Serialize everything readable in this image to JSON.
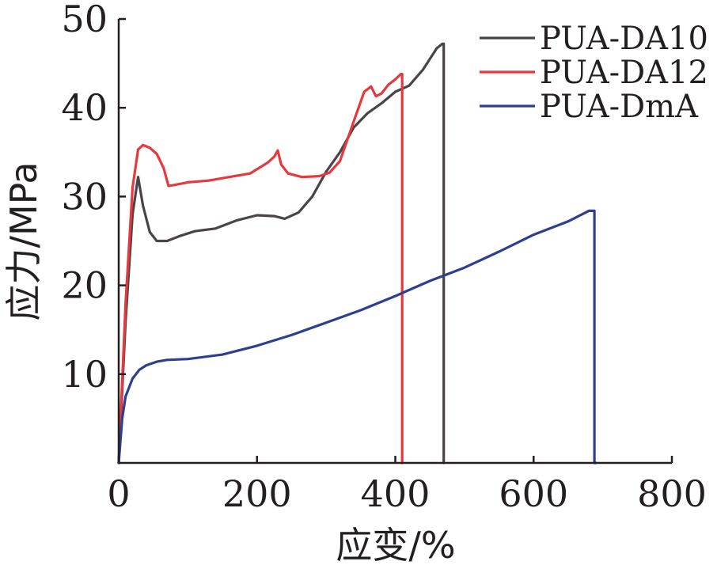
{
  "chart_data": {
    "type": "line",
    "title": "",
    "xlabel": "应变/%",
    "ylabel": "应力/MPa",
    "xlim": [
      0,
      800
    ],
    "ylim": [
      0,
      50
    ],
    "x_ticks": [
      0,
      200,
      400,
      600,
      800
    ],
    "x_tick_labels": [
      "0",
      "200",
      "400",
      "600",
      "800"
    ],
    "y_ticks": [
      10,
      20,
      30,
      40,
      50
    ],
    "y_tick_labels": [
      "10",
      "20",
      "30",
      "40",
      "50"
    ],
    "grid": false,
    "legend": "top-right",
    "series": [
      {
        "name": "PUA-DA10",
        "color": "#4a4446",
        "x": [
          0,
          10,
          20,
          28,
          35,
          45,
          55,
          70,
          90,
          110,
          140,
          170,
          200,
          225,
          240,
          260,
          280,
          300,
          320,
          340,
          360,
          380,
          400,
          420,
          440,
          460,
          468,
          470,
          470
        ],
        "y": [
          0,
          16,
          28,
          32.2,
          29,
          26,
          25,
          25,
          25.6,
          26.1,
          26.4,
          27.3,
          27.9,
          27.8,
          27.5,
          28.2,
          30,
          32.8,
          35,
          37.8,
          39.4,
          40.5,
          41.8,
          42.5,
          44.3,
          46.7,
          47.2,
          47.2,
          0
        ]
      },
      {
        "name": "PUA-DA12",
        "color": "#e8383d",
        "x": [
          0,
          10,
          20,
          28,
          35,
          45,
          55,
          65,
          72,
          80,
          100,
          130,
          160,
          190,
          215,
          225,
          230,
          235,
          245,
          265,
          290,
          305,
          320,
          340,
          355,
          365,
          372,
          380,
          390,
          400,
          408,
          410,
          410
        ],
        "y": [
          0,
          18,
          31,
          35.3,
          35.8,
          35.5,
          34.8,
          33.2,
          31.2,
          31.3,
          31.6,
          31.8,
          32.2,
          32.6,
          33.8,
          34.5,
          35.2,
          33.6,
          32.6,
          32.2,
          32.3,
          32.7,
          34,
          38.5,
          41.8,
          42.4,
          41.3,
          41.6,
          42.6,
          43.2,
          43.8,
          43.8,
          0
        ]
      },
      {
        "name": "PUA-DmA",
        "color": "#2e3f8f",
        "x": [
          0,
          5,
          10,
          20,
          30,
          40,
          55,
          70,
          100,
          150,
          200,
          250,
          300,
          350,
          400,
          450,
          500,
          550,
          600,
          650,
          680,
          688,
          688,
          690
        ],
        "y": [
          0,
          5,
          7.5,
          9.5,
          10.5,
          11,
          11.4,
          11.6,
          11.7,
          12.2,
          13.2,
          14.4,
          15.8,
          17.2,
          18.8,
          20.5,
          22,
          23.8,
          25.7,
          27.2,
          28.4,
          28.4,
          0,
          0
        ]
      }
    ]
  }
}
